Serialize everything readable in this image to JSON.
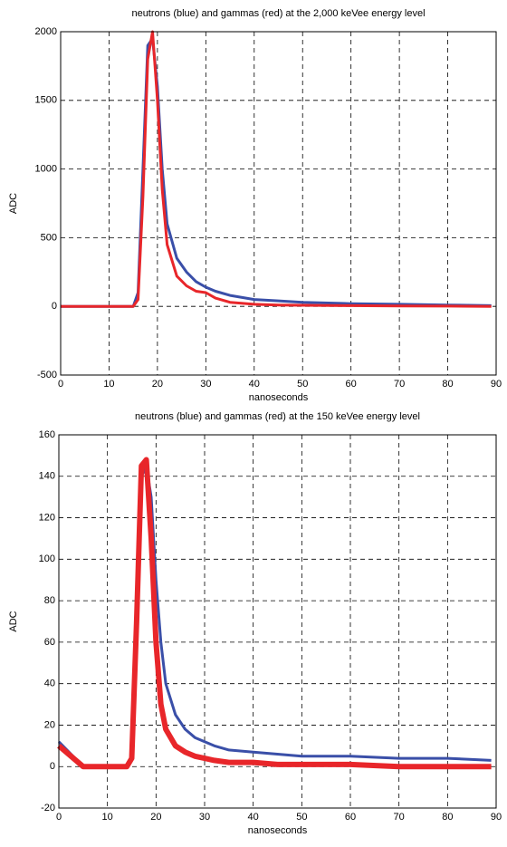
{
  "chart_data": [
    {
      "type": "line",
      "title": "neutrons (blue) and gammas (red) at the 2,000 keVee energy level",
      "x_label": "nanoseconds",
      "y_label": "ADC",
      "x": [
        0,
        5,
        10,
        14,
        15,
        16,
        17,
        18,
        19,
        20,
        21,
        22,
        24,
        26,
        28,
        30,
        32,
        35,
        40,
        45,
        50,
        60,
        70,
        80,
        89
      ],
      "series": [
        {
          "color": "#3a4fa8",
          "values": [
            0,
            0,
            0,
            0,
            0,
            100,
            1000,
            1900,
            1950,
            1600,
            1000,
            600,
            350,
            250,
            180,
            140,
            110,
            80,
            50,
            40,
            30,
            20,
            15,
            10,
            5
          ]
        },
        {
          "color": "#e8262a",
          "values": [
            0,
            0,
            0,
            0,
            0,
            50,
            800,
            1800,
            2000,
            1500,
            850,
            450,
            220,
            150,
            110,
            100,
            60,
            30,
            15,
            10,
            8,
            5,
            3,
            2,
            0
          ]
        }
      ],
      "xlim": [
        0,
        90
      ],
      "xticks": [
        0,
        10,
        20,
        30,
        40,
        50,
        60,
        70,
        80,
        90
      ],
      "ylim": [
        -500,
        2000
      ],
      "yticks": [
        -500,
        0,
        500,
        1000,
        1500,
        2000
      ],
      "grid": true
    },
    {
      "type": "line",
      "title": "neutrons (blue) and gammas (red) at the 150 keVee energy level",
      "x_label": "nanoseconds",
      "y_label": "ADC",
      "x": [
        0,
        5,
        10,
        14,
        15,
        16,
        17,
        18,
        19,
        20,
        21,
        22,
        24,
        26,
        28,
        30,
        32,
        35,
        40,
        45,
        50,
        60,
        70,
        80,
        89
      ],
      "series": [
        {
          "color": "#3a4fa8",
          "values": [
            12,
            0,
            0,
            0,
            5,
            80,
            140,
            145,
            130,
            90,
            60,
            40,
            25,
            18,
            14,
            12,
            10,
            8,
            7,
            6,
            5,
            5,
            4,
            4,
            3
          ]
        },
        {
          "color": "#e8262a",
          "values": [
            10,
            0,
            0,
            0,
            4,
            70,
            145,
            148,
            110,
            60,
            30,
            18,
            10,
            7,
            5,
            4,
            3,
            2,
            2,
            1,
            1,
            1,
            0,
            0,
            0
          ]
        }
      ],
      "xlim": [
        0,
        90
      ],
      "xticks": [
        0,
        10,
        20,
        30,
        40,
        50,
        60,
        70,
        80,
        90
      ],
      "ylim": [
        -20,
        160
      ],
      "yticks": [
        -20,
        0,
        20,
        40,
        60,
        80,
        100,
        120,
        140,
        160
      ],
      "grid": true
    }
  ]
}
